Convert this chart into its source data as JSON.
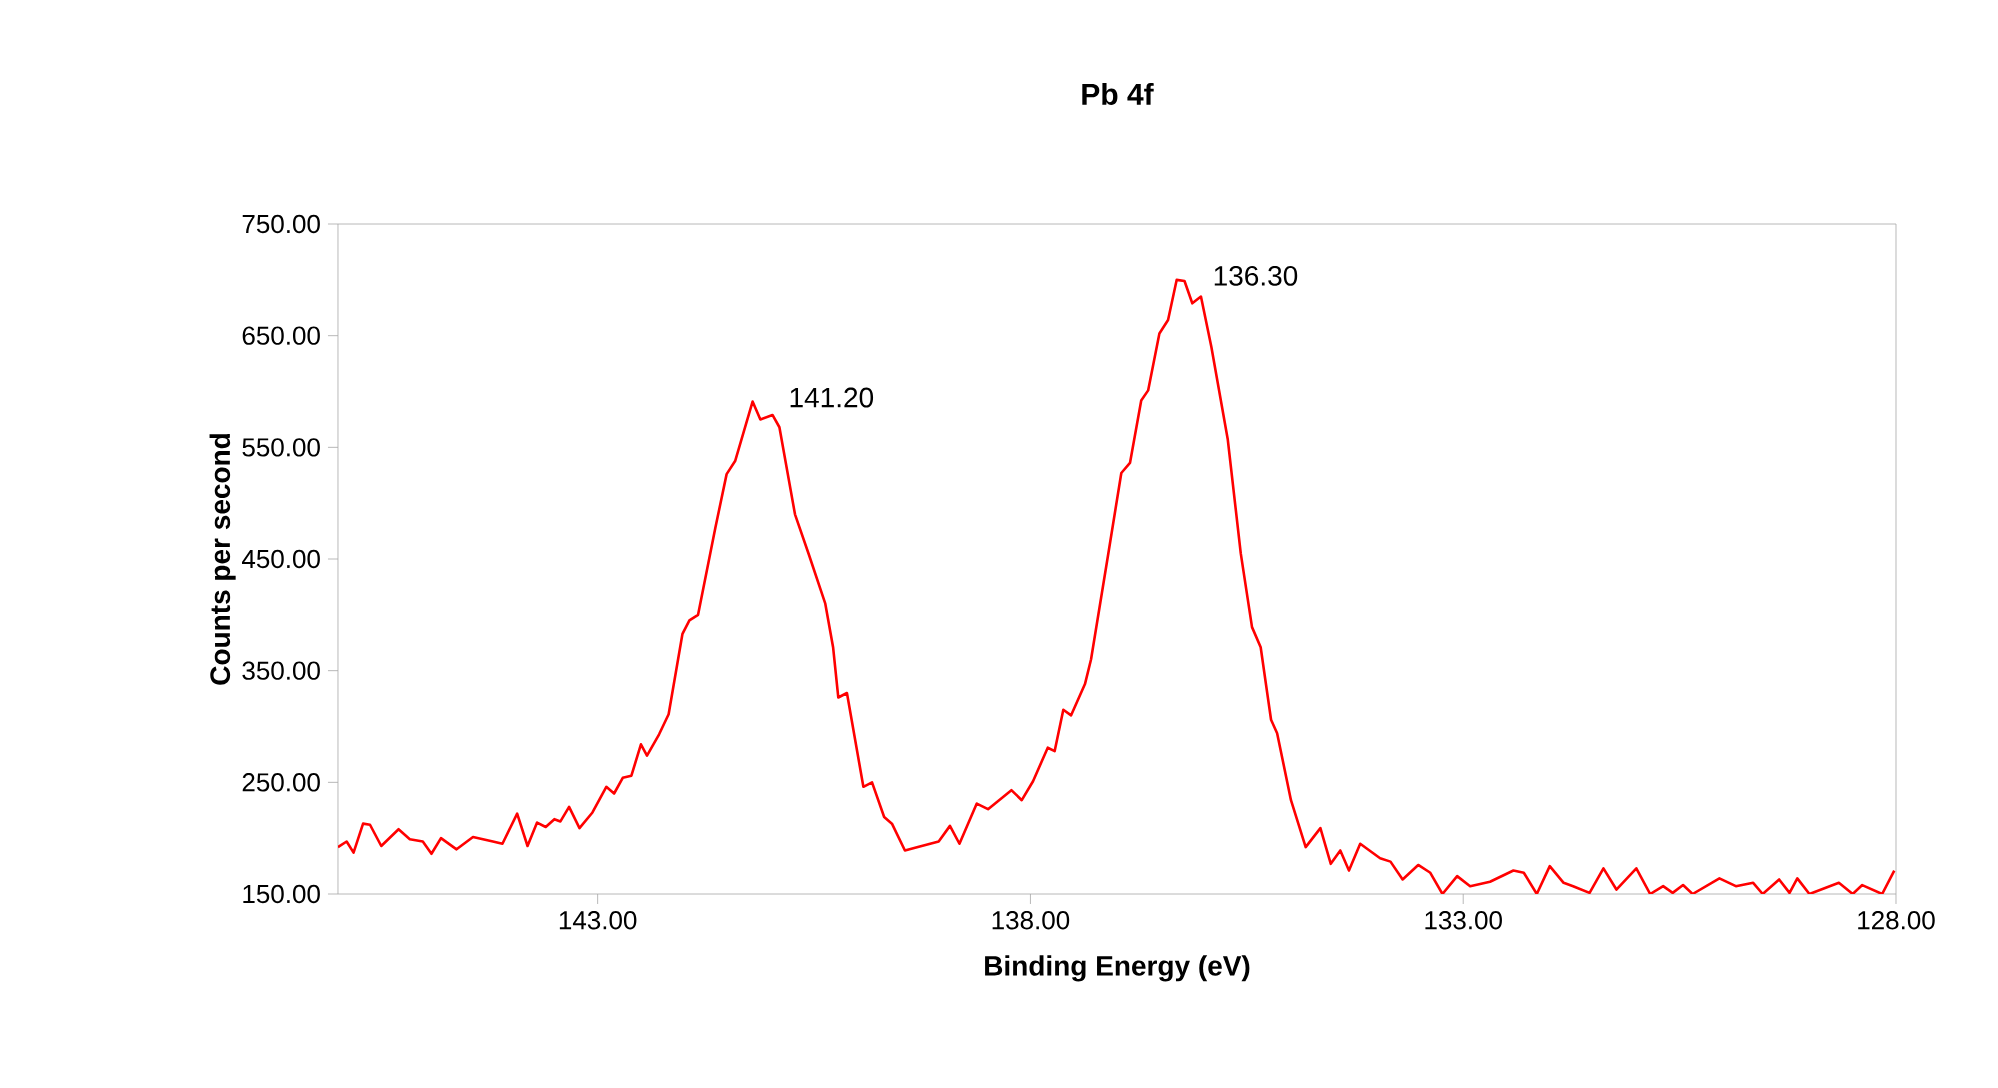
{
  "chart_data": {
    "type": "line",
    "title": "Pb 4f",
    "xlabel": "Binding Energy (eV)",
    "ylabel": "Counts per second",
    "xlim": [
      146,
      128
    ],
    "ylim": [
      150,
      750
    ],
    "xticks": [
      {
        "value": 143,
        "label": "143.00"
      },
      {
        "value": 138,
        "label": "138.00"
      },
      {
        "value": 133,
        "label": "133.00"
      },
      {
        "value": 128,
        "label": "128.00"
      }
    ],
    "yticks": [
      {
        "value": 150,
        "label": "150.00"
      },
      {
        "value": 250,
        "label": "250.00"
      },
      {
        "value": 350,
        "label": "350.00"
      },
      {
        "value": 450,
        "label": "450.00"
      },
      {
        "value": 550,
        "label": "550.00"
      },
      {
        "value": 650,
        "label": "650.00"
      },
      {
        "value": 750,
        "label": "750.00"
      }
    ],
    "grid": false,
    "marker": "none",
    "line_style": "solid",
    "annotations": [
      {
        "text": "141.20",
        "x": 141.2,
        "y": 591
      },
      {
        "text": "136.30",
        "x": 136.3,
        "y": 700
      }
    ],
    "series": [
      {
        "color": "#ff0000",
        "x": [
          146.0,
          145.9,
          145.82,
          145.71,
          145.63,
          145.5,
          145.3,
          145.17,
          145.02,
          144.92,
          144.81,
          144.63,
          144.44,
          144.21,
          144.1,
          143.93,
          143.81,
          143.7,
          143.6,
          143.5,
          143.43,
          143.33,
          143.21,
          143.06,
          142.9,
          142.81,
          142.71,
          142.61,
          142.5,
          142.43,
          142.29,
          142.18,
          142.02,
          141.94,
          141.84,
          141.64,
          141.51,
          141.41,
          141.21,
          141.12,
          140.98,
          140.9,
          140.72,
          140.56,
          140.37,
          140.28,
          140.22,
          140.12,
          139.93,
          139.83,
          139.69,
          139.6,
          139.45,
          139.3,
          139.06,
          138.93,
          138.82,
          138.62,
          138.49,
          138.22,
          138.1,
          137.97,
          137.8,
          137.72,
          137.62,
          137.53,
          137.37,
          137.3,
          137.1,
          136.95,
          136.85,
          136.72,
          136.64,
          136.51,
          136.41,
          136.31,
          136.22,
          136.13,
          136.03,
          135.91,
          135.72,
          135.57,
          135.44,
          135.34,
          135.22,
          135.15,
          134.99,
          134.82,
          134.65,
          134.53,
          134.42,
          134.32,
          134.19,
          133.96,
          133.84,
          133.7,
          133.52,
          133.38,
          133.24,
          133.07,
          132.92,
          132.69,
          132.42,
          132.3,
          132.15,
          132.0,
          131.84,
          131.73,
          131.54,
          131.38,
          131.23,
          131.0,
          130.84,
          130.69,
          130.58,
          130.46,
          130.35,
          130.04,
          129.85,
          129.65,
          129.54,
          129.35,
          129.23,
          129.14,
          129.0,
          128.66,
          128.5,
          128.39,
          128.16,
          128.02
        ],
        "values": [
          192,
          197,
          187,
          213,
          212,
          193,
          208,
          199,
          197,
          186,
          200,
          190,
          201,
          197,
          195,
          222,
          193,
          214,
          210,
          217,
          215,
          228,
          209,
          223,
          246,
          240,
          254,
          256,
          284,
          274,
          293,
          311,
          383,
          395,
          400,
          478,
          526,
          538,
          591,
          575,
          579,
          568,
          490,
          454,
          410,
          371,
          326,
          330,
          246,
          250,
          219,
          213,
          189,
          192,
          197,
          211,
          195,
          231,
          226,
          243,
          234,
          251,
          281,
          278,
          315,
          310,
          338,
          360,
          455,
          527,
          536,
          592,
          601,
          652,
          664,
          700,
          699,
          679,
          685,
          640,
          557,
          455,
          389,
          371,
          306,
          294,
          234,
          192,
          209,
          177,
          189,
          171,
          195,
          182,
          179,
          163,
          176,
          169,
          150,
          166,
          157,
          161,
          171,
          169,
          150,
          175,
          160,
          157,
          151,
          173,
          154,
          173,
          150,
          157,
          151,
          158,
          150,
          164,
          157,
          160,
          150,
          163,
          151,
          164,
          150,
          160,
          150,
          158,
          150,
          171
        ]
      }
    ]
  }
}
